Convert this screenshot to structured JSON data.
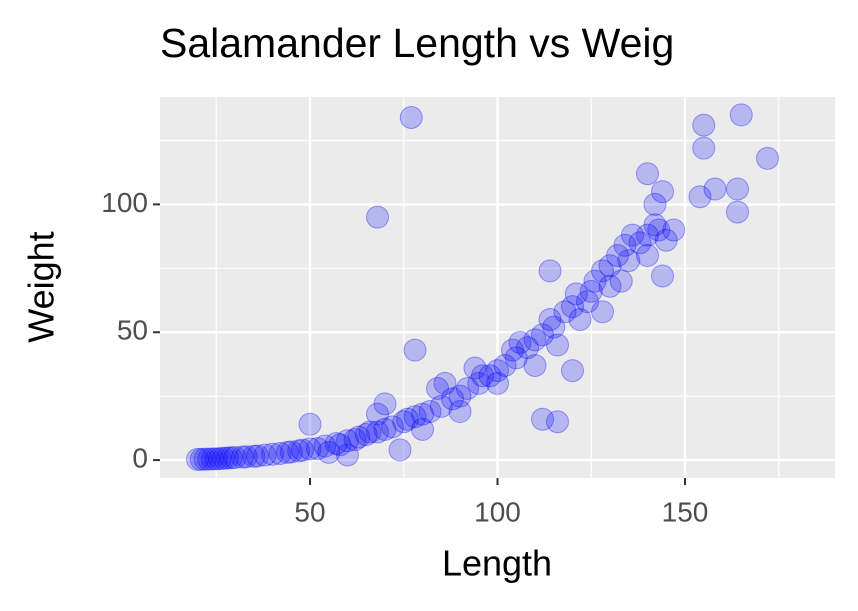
{
  "chart_data": {
    "type": "scatter",
    "title": "Salamander Length vs Weig",
    "x_label": "Length",
    "y_label": "Weight",
    "x": [
      20,
      21,
      22,
      23,
      24,
      25,
      26,
      27,
      28,
      29,
      30,
      32,
      33,
      35,
      36,
      38,
      40,
      42,
      44,
      45,
      47,
      48,
      50,
      50,
      52,
      54,
      55,
      57,
      58,
      60,
      60,
      62,
      63,
      65,
      66,
      68,
      68,
      70,
      70,
      72,
      74,
      75,
      76,
      78,
      80,
      80,
      82,
      84,
      85,
      86,
      88,
      90,
      90,
      92,
      94,
      95,
      96,
      98,
      100,
      100,
      102,
      104,
      105,
      106,
      108,
      110,
      110,
      112,
      114,
      115,
      116,
      118,
      120,
      120,
      121,
      122,
      124,
      125,
      126,
      128,
      128,
      130,
      130,
      132,
      133,
      134,
      135,
      136,
      138,
      140,
      140,
      142,
      143,
      145,
      77,
      68,
      78,
      112,
      116,
      165,
      155,
      155,
      172,
      158,
      164,
      154,
      164,
      140,
      144,
      142,
      147,
      144,
      114
    ],
    "values": [
      0.3,
      0.3,
      0.4,
      0.4,
      0.5,
      0.5,
      0.6,
      0.7,
      0.8,
      0.9,
      1,
      1.2,
      1.3,
      1.5,
      1.6,
      2,
      2.3,
      2.6,
      3,
      3.2,
      3.6,
      3.9,
      4.4,
      14,
      4.5,
      5.5,
      3,
      6.5,
      6,
      7.6,
      2,
      8,
      9,
      10,
      11,
      11,
      18,
      12,
      22,
      13,
      4,
      15,
      16,
      17,
      18,
      12,
      19,
      28,
      21,
      30,
      24,
      25,
      19,
      28,
      36,
      30,
      33,
      33,
      35,
      30,
      37,
      43,
      40,
      46,
      44,
      47,
      37,
      49,
      55,
      52,
      45,
      58,
      60,
      35,
      65,
      55,
      62,
      66,
      70,
      74,
      58,
      76,
      68,
      80,
      70,
      84,
      78,
      88,
      85,
      88,
      80,
      92,
      90,
      86,
      134,
      95,
      43,
      16,
      15,
      135,
      131,
      122,
      118,
      106,
      106,
      103,
      97,
      112,
      105,
      100,
      90,
      72,
      74
    ],
    "color": "#0000ff",
    "xlim": [
      10,
      190
    ],
    "ylim": [
      -7,
      142
    ],
    "xticks": [
      50,
      100,
      150
    ],
    "yticks": [
      0,
      50,
      100
    ],
    "x_minor_ticks": [
      25,
      75,
      125,
      175
    ],
    "y_minor_ticks": [
      25,
      75,
      125
    ],
    "grid": true
  }
}
